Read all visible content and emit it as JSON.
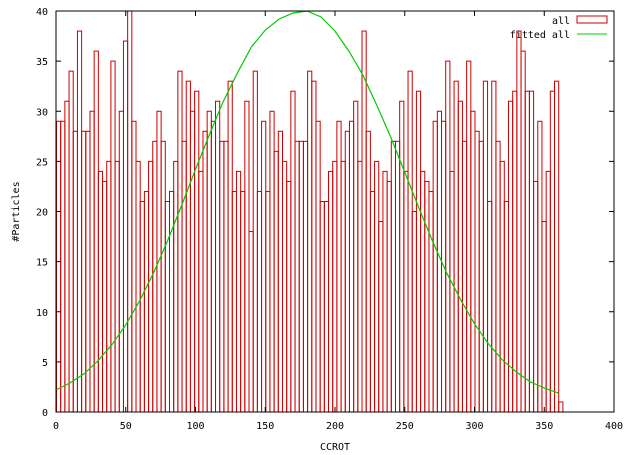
{
  "chart_data": {
    "type": "bar",
    "xlabel": "CCROT",
    "ylabel": "#Particles",
    "xlim": [
      0,
      400
    ],
    "ylim": [
      0,
      40
    ],
    "xticks": [
      0,
      50,
      100,
      150,
      200,
      250,
      300,
      350,
      400
    ],
    "yticks": [
      0,
      5,
      10,
      15,
      20,
      25,
      30,
      35,
      40
    ],
    "legend_position": "top-right",
    "bin_width": 3,
    "series": [
      {
        "name": "all",
        "kind": "histogram",
        "color": "#cc0000",
        "x": [
          0,
          3,
          6,
          9,
          12,
          15,
          18,
          21,
          24,
          27,
          30,
          33,
          36,
          39,
          42,
          45,
          48,
          51,
          54,
          57,
          60,
          63,
          66,
          69,
          72,
          75,
          78,
          81,
          84,
          87,
          90,
          93,
          96,
          99,
          102,
          105,
          108,
          111,
          114,
          117,
          120,
          123,
          126,
          129,
          132,
          135,
          138,
          141,
          144,
          147,
          150,
          153,
          156,
          159,
          162,
          165,
          168,
          171,
          174,
          177,
          180,
          183,
          186,
          189,
          192,
          195,
          198,
          201,
          204,
          207,
          210,
          213,
          216,
          219,
          222,
          225,
          228,
          231,
          234,
          237,
          240,
          243,
          246,
          249,
          252,
          255,
          258,
          261,
          264,
          267,
          270,
          273,
          276,
          279,
          282,
          285,
          288,
          291,
          294,
          297,
          300,
          303,
          306,
          309,
          312,
          315,
          318,
          321,
          324,
          327,
          330,
          333,
          336,
          339,
          342,
          345,
          348,
          351,
          354,
          357,
          360
        ],
        "values": [
          29,
          29,
          31,
          34,
          28,
          38,
          28,
          28,
          30,
          36,
          24,
          23,
          25,
          35,
          25,
          30,
          37,
          40,
          29,
          25,
          21,
          22,
          25,
          27,
          30,
          27,
          21,
          22,
          25,
          34,
          27,
          33,
          30,
          32,
          24,
          28,
          30,
          29,
          31,
          27,
          27,
          33,
          22,
          24,
          22,
          31,
          18,
          34,
          22,
          29,
          22,
          30,
          26,
          28,
          25,
          23,
          32,
          27,
          27,
          27,
          34,
          33,
          29,
          21,
          21,
          24,
          25,
          29,
          25,
          28,
          29,
          31,
          25,
          38,
          28,
          22,
          25,
          19,
          24,
          23,
          27,
          27,
          31,
          24,
          34,
          20,
          32,
          24,
          23,
          22,
          29,
          30,
          29,
          35,
          24,
          33,
          31,
          27,
          35,
          30,
          28,
          27,
          33,
          21,
          33,
          27,
          25,
          21,
          31,
          32,
          38,
          36,
          32,
          32,
          23,
          29,
          19,
          24,
          32,
          33,
          1
        ]
      },
      {
        "name": "fitted all",
        "kind": "line",
        "color": "#00cc00",
        "x": [
          0,
          10,
          20,
          30,
          40,
          50,
          60,
          70,
          80,
          90,
          100,
          110,
          120,
          130,
          140,
          150,
          160,
          170,
          180,
          190,
          200,
          210,
          220,
          230,
          240,
          250,
          260,
          270,
          280,
          290,
          300,
          310,
          320,
          330,
          340,
          350,
          360
        ],
        "values": [
          2.2,
          2.9,
          3.8,
          5.1,
          6.7,
          8.7,
          11.1,
          13.9,
          17.1,
          20.6,
          24.2,
          27.7,
          31.0,
          33.8,
          36.4,
          38.1,
          39.2,
          39.8,
          40.0,
          39.4,
          38.0,
          36.0,
          33.6,
          30.6,
          27.4,
          23.9,
          20.4,
          17.0,
          13.9,
          11.2,
          8.8,
          6.8,
          5.2,
          4.0,
          3.0,
          2.4,
          1.9
        ]
      }
    ]
  }
}
